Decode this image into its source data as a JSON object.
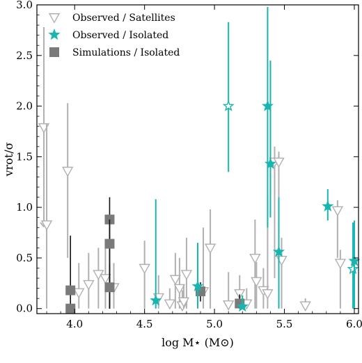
{
  "chart_data": {
    "type": "scatter",
    "xlabel": "log M⋆ (M⊙)",
    "ylabel": "vrot/σ",
    "xlim": [
      3.73,
      6.03
    ],
    "ylim": [
      -0.05,
      3.0
    ],
    "x_ticks": [
      "4.0",
      "4.5",
      "5.0",
      "5.5",
      "6.0"
    ],
    "y_ticks": [
      "0.0",
      "0.5",
      "1.0",
      "1.5",
      "2.0",
      "2.5",
      "3.0"
    ],
    "legend_position": "top-left",
    "grid": false,
    "colors": {
      "satellites": "#b0b0b0",
      "isolated_obs": "#19b5b0",
      "simulations": "#7a7a7a",
      "sim_errorbar": "#111111"
    },
    "series": [
      {
        "name": "Observed / Satellites",
        "marker": "triangle-down-open",
        "points": [
          {
            "x": 3.78,
            "y": 1.79,
            "lo": 0.85,
            "hi": 2.78,
            "upper_limit": true
          },
          {
            "x": 3.8,
            "y": 0.83,
            "lo": 0.0,
            "hi": 1.83
          },
          {
            "x": 3.95,
            "y": 1.36,
            "lo": 0.5,
            "hi": 2.03
          },
          {
            "x": 4.03,
            "y": 0.16,
            "lo": 0.0,
            "hi": 0.45
          },
          {
            "x": 4.1,
            "y": 0.24,
            "lo": 0.0,
            "hi": 0.55
          },
          {
            "x": 4.17,
            "y": 0.34,
            "lo": 0.0,
            "hi": 0.6
          },
          {
            "x": 4.22,
            "y": 0.3,
            "lo": 0.0,
            "hi": 0.6
          },
          {
            "x": 4.28,
            "y": 0.21,
            "lo": 0.0,
            "hi": 0.45
          },
          {
            "x": 4.5,
            "y": 0.4,
            "lo": 0.0,
            "hi": 0.67
          },
          {
            "x": 4.6,
            "y": 0.11,
            "lo": 0.0,
            "hi": 0.33
          },
          {
            "x": 4.68,
            "y": 0.05,
            "lo": 0.0,
            "hi": 0.2
          },
          {
            "x": 4.72,
            "y": 0.29,
            "lo": 0.0,
            "hi": 0.55
          },
          {
            "x": 4.75,
            "y": 0.2,
            "lo": 0.0,
            "hi": 0.5
          },
          {
            "x": 4.77,
            "y": 0.03,
            "lo": 0.0,
            "hi": 0.18
          },
          {
            "x": 4.8,
            "y": 0.34,
            "lo": 0.0,
            "hi": 0.7
          },
          {
            "x": 4.78,
            "y": 0.07,
            "lo": 0.0,
            "hi": 0.24
          },
          {
            "x": 4.92,
            "y": 0.17,
            "lo": 0.0,
            "hi": 0.8
          },
          {
            "x": 4.97,
            "y": 0.6,
            "lo": 0.0,
            "hi": 0.98
          },
          {
            "x": 5.1,
            "y": 0.04,
            "lo": 0.0,
            "hi": 0.36
          },
          {
            "x": 5.18,
            "y": 0.15,
            "lo": 0.0,
            "hi": 0.33
          },
          {
            "x": 5.23,
            "y": 0.05,
            "lo": 0.0,
            "hi": 0.2
          },
          {
            "x": 5.29,
            "y": 0.5,
            "lo": 0.0,
            "hi": 0.88
          },
          {
            "x": 5.3,
            "y": 0.27,
            "lo": 0.0,
            "hi": 0.46
          },
          {
            "x": 5.35,
            "y": 0.18,
            "lo": 0.0,
            "hi": 0.4
          },
          {
            "x": 5.38,
            "y": 0.15,
            "lo": 0.0,
            "hi": 1.1
          },
          {
            "x": 5.43,
            "y": 1.45,
            "lo": 0.3,
            "hi": 1.6
          },
          {
            "x": 5.46,
            "y": 1.45,
            "lo": 0.6,
            "hi": 1.55
          },
          {
            "x": 5.48,
            "y": 0.48,
            "lo": 0.0,
            "hi": 0.7
          },
          {
            "x": 5.65,
            "y": 0.03,
            "lo": 0.0,
            "hi": 0.1
          },
          {
            "x": 5.88,
            "y": 0.97,
            "lo": 0.5,
            "hi": 1.07
          },
          {
            "x": 5.9,
            "y": 0.45,
            "lo": 0.0,
            "hi": 0.58
          }
        ]
      },
      {
        "name": "Observed / Isolated",
        "marker": "star",
        "points": [
          {
            "x": 4.58,
            "y": 0.08,
            "lo": 0.0,
            "hi": 1.08,
            "filled": true
          },
          {
            "x": 4.88,
            "y": 0.22,
            "lo": 0.0,
            "hi": 0.65,
            "filled": true
          },
          {
            "x": 5.1,
            "y": 2.0,
            "lo": 1.35,
            "hi": 2.83,
            "filled": false
          },
          {
            "x": 5.2,
            "y": 0.02,
            "lo": 0.0,
            "hi": 0.13,
            "filled": true
          },
          {
            "x": 5.38,
            "y": 2.0,
            "lo": 0.8,
            "hi": 2.98,
            "filled": true
          },
          {
            "x": 5.4,
            "y": 1.43,
            "lo": 0.9,
            "hi": 2.45,
            "filled": true
          },
          {
            "x": 5.46,
            "y": 0.56,
            "lo": 0.0,
            "hi": 1.1,
            "filled": true
          },
          {
            "x": 5.81,
            "y": 1.01,
            "lo": 0.87,
            "hi": 1.18,
            "filled": true
          },
          {
            "x": 5.99,
            "y": 0.39,
            "lo": 0.0,
            "hi": 0.85,
            "filled": false
          },
          {
            "x": 6.0,
            "y": 0.47,
            "lo": 0.0,
            "hi": 0.87,
            "filled": true
          }
        ]
      },
      {
        "name": "Simulations / Isolated",
        "marker": "square",
        "points": [
          {
            "x": 3.97,
            "y": 0.18,
            "lo": 0.0,
            "hi": 0.72
          },
          {
            "x": 3.97,
            "y": 0.0,
            "lo": 0.0,
            "hi": 0.05
          },
          {
            "x": 4.25,
            "y": 0.88,
            "lo": 0.0,
            "hi": 1.1
          },
          {
            "x": 4.25,
            "y": 0.64,
            "lo": 0.0,
            "hi": 0.88
          },
          {
            "x": 4.25,
            "y": 0.21,
            "lo": 0.0,
            "hi": 0.44
          },
          {
            "x": 4.9,
            "y": 0.17,
            "lo": 0.07,
            "hi": 0.26
          },
          {
            "x": 5.18,
            "y": 0.05,
            "lo": 0.0,
            "hi": 0.14
          }
        ]
      }
    ]
  }
}
